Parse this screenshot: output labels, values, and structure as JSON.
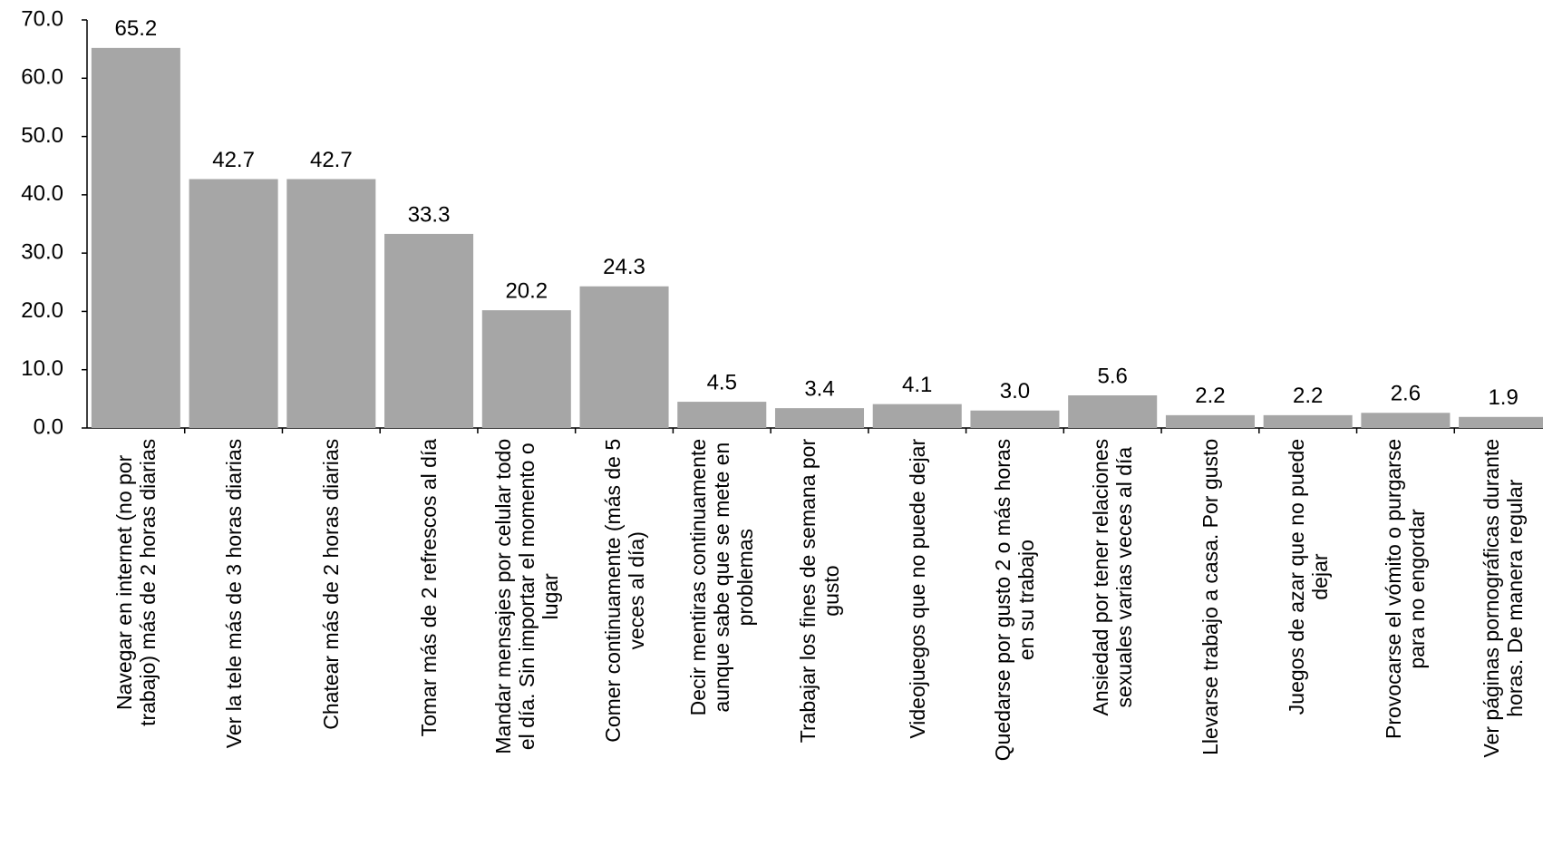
{
  "chart_data": {
    "type": "bar",
    "categories": [
      "Navegar en internet (no por\ntrabajo) más de 2 horas diarias",
      "Ver la tele más de 3 horas diarias",
      "Chatear más de 2 horas diarias",
      "Tomar más de 2 refrescos al día",
      "Mandar mensajes por celular todo\nel día. Sin importar el momento o\nlugar",
      "Comer continuamente (más de 5\nveces al día)",
      "Decir mentiras continuamente\naunque sabe que se mete en\nproblemas",
      "Trabajar los fines de semana por\ngusto",
      "Videojuegos que no puede dejar",
      "Quedarse por gusto 2 o más horas\nen su trabajo",
      "Ansiedad por tener relaciones\nsexuales varias veces al día",
      "Llevarse trabajo a casa. Por gusto",
      "Juegos de azar que no puede\ndejar",
      "Provocarse el vómito o purgarse\npara no engordar",
      "Ver páginas pornográficas durante\nhoras. De manera regular"
    ],
    "values": [
      65.2,
      42.7,
      42.7,
      33.3,
      20.2,
      24.3,
      4.5,
      3.4,
      4.1,
      3.0,
      5.6,
      2.2,
      2.2,
      2.6,
      1.9
    ],
    "value_labels": [
      "65.2",
      "42.7",
      "42.7",
      "33.3",
      "20.2",
      "24.3",
      "4.5",
      "3.4",
      "4.1",
      "3.0",
      "5.6",
      "2.2",
      "2.2",
      "2.6",
      "1.9"
    ],
    "color": "#a6a6a6",
    "ylim": [
      0,
      70
    ],
    "yticks": [
      {
        "value": 0,
        "label": "0.0"
      },
      {
        "value": 10,
        "label": "10.0"
      },
      {
        "value": 20,
        "label": "20.0"
      },
      {
        "value": 30,
        "label": "30.0"
      },
      {
        "value": 40,
        "label": "40.0"
      },
      {
        "value": 50,
        "label": "50.0"
      },
      {
        "value": 60,
        "label": "60.0"
      },
      {
        "value": 70,
        "label": "70.0"
      }
    ]
  }
}
